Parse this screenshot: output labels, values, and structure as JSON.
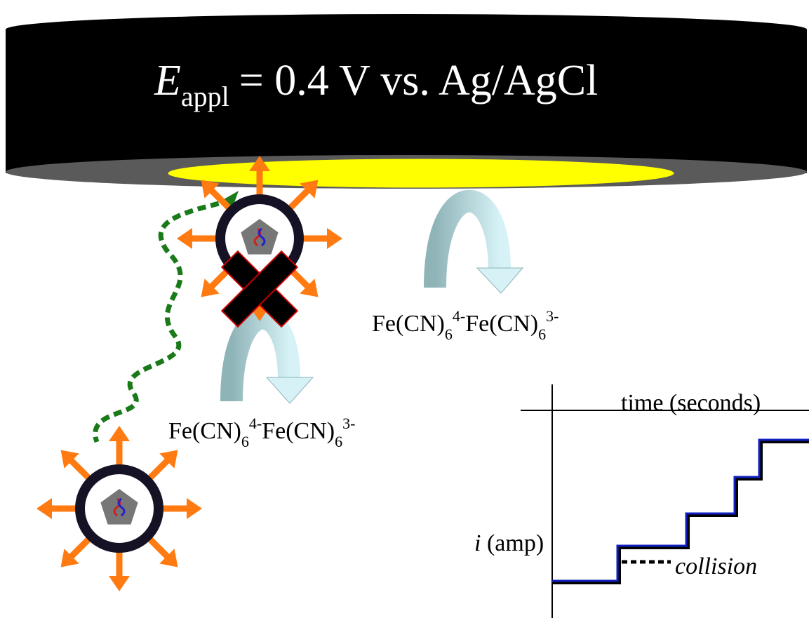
{
  "electrode": {
    "label": {
      "symbol": "E",
      "subscript": "appl",
      "text": "= 0.4 V vs. Ag/AgCl"
    }
  },
  "redox": [
    {
      "reduced": "Fe(CN)",
      "reduced_sub": "6",
      "reduced_sup": "4-",
      "oxidized": "Fe(CN)",
      "oxidized_sub": "6",
      "oxidized_sup": "3-"
    },
    {
      "reduced": "Fe(CN)",
      "reduced_sub": "6",
      "reduced_sup": "4-",
      "oxidized": "Fe(CN)",
      "oxidized_sub": "6",
      "oxidized_sup": "3-"
    }
  ],
  "graph": {
    "x_label": "time (seconds)",
    "y_symbol": "i",
    "y_unit": "(amp)",
    "annotation": "collision"
  }
}
